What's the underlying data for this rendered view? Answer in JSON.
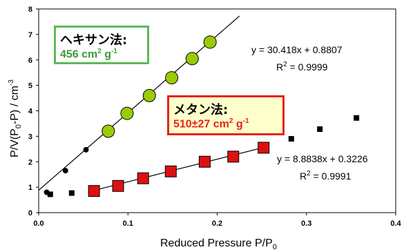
{
  "chart_data": {
    "type": "scatter",
    "xlabel": "Reduced Pressure P/P",
    "xlabel_sub": "0",
    "ylabel": "P/V(P",
    "ylabel_sub": "0",
    "ylabel_tail": "-P) / cm",
    "ylabel_sup": "-3",
    "xlim": [
      0.0,
      0.4
    ],
    "ylim": [
      0,
      8
    ],
    "x_ticks": [
      "0.0",
      "0.1",
      "0.2",
      "0.3",
      "0.4"
    ],
    "y_ticks": [
      "0",
      "1",
      "2",
      "3",
      "4",
      "5",
      "6",
      "7",
      "8"
    ],
    "series": [
      {
        "marker": "black-circle",
        "color": "#000000",
        "x": [
          0.009,
          0.03,
          0.053
        ],
        "y": [
          0.8,
          1.65,
          2.47
        ]
      },
      {
        "marker": "green-circle",
        "color": "#99cc00",
        "x": [
          0.078,
          0.099,
          0.124,
          0.149,
          0.172,
          0.192
        ],
        "y": [
          3.2,
          3.9,
          4.6,
          5.3,
          6.05,
          6.7
        ]
      },
      {
        "marker": "black-square",
        "color": "#000000",
        "x": [
          0.013,
          0.037,
          0.283,
          0.315,
          0.356
        ],
        "y": [
          0.72,
          0.77,
          2.9,
          3.28,
          3.72
        ]
      },
      {
        "marker": "red-square",
        "color": "#dd1111",
        "x": [
          0.062,
          0.089,
          0.117,
          0.148,
          0.186,
          0.218,
          0.252
        ],
        "y": [
          0.85,
          1.05,
          1.35,
          1.62,
          2.0,
          2.2,
          2.55
        ]
      }
    ],
    "fits": [
      {
        "slope": 30.418,
        "intercept": 0.8807,
        "x_range": [
          0.0,
          0.225
        ]
      },
      {
        "slope": 8.8838,
        "intercept": 0.3226,
        "x_range": [
          0.062,
          0.253
        ]
      }
    ],
    "annotations": {
      "hexane_eq": "y = 30.418x + 0.8807",
      "hexane_r2_lead": "R",
      "hexane_r2_sup": "2",
      "hexane_r2_tail": " = 0.9999",
      "methane_eq": "y = 8.8838x + 0.3226",
      "methane_r2_lead": "R",
      "methane_r2_sup": "2",
      "methane_r2_tail": " = 0.9991"
    },
    "legend_boxes": {
      "hexane": {
        "title": "ヘキサン法:",
        "value_lead": "456 cm",
        "value_sup1": "2",
        "value_mid": " g",
        "value_sup2": "-1",
        "border_color": "#5fb85a",
        "text_color": "#3a9a33"
      },
      "methane": {
        "title": "メタン法:",
        "value_lead": "510±27 cm",
        "value_sup1": "2",
        "value_mid": " g",
        "value_sup2": "-1",
        "border_color": "#e8231a",
        "text_color": "#e8231a"
      }
    }
  }
}
